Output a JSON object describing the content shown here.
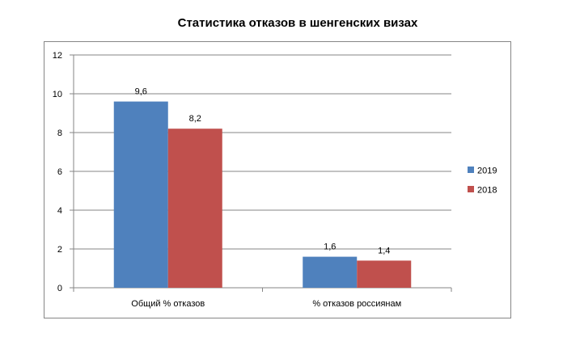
{
  "chart_data": {
    "type": "bar",
    "title": "Статистика отказов в шенгенских визах",
    "categories": [
      "Общий % отказов",
      "% отказов россиянам"
    ],
    "series": [
      {
        "name": "2019",
        "values": [
          9.6,
          1.6
        ],
        "labels": [
          "9,6",
          "1,6"
        ],
        "color": "#4F81BD"
      },
      {
        "name": "2018",
        "values": [
          8.2,
          1.4
        ],
        "labels": [
          "8,2",
          "1,4"
        ],
        "color": "#C0504D"
      }
    ],
    "yticks": [
      "0",
      "2",
      "4",
      "6",
      "8",
      "10",
      "12"
    ],
    "ylim": [
      0,
      12
    ],
    "grid": true,
    "legend_position": "right",
    "xlabel": "",
    "ylabel": ""
  }
}
